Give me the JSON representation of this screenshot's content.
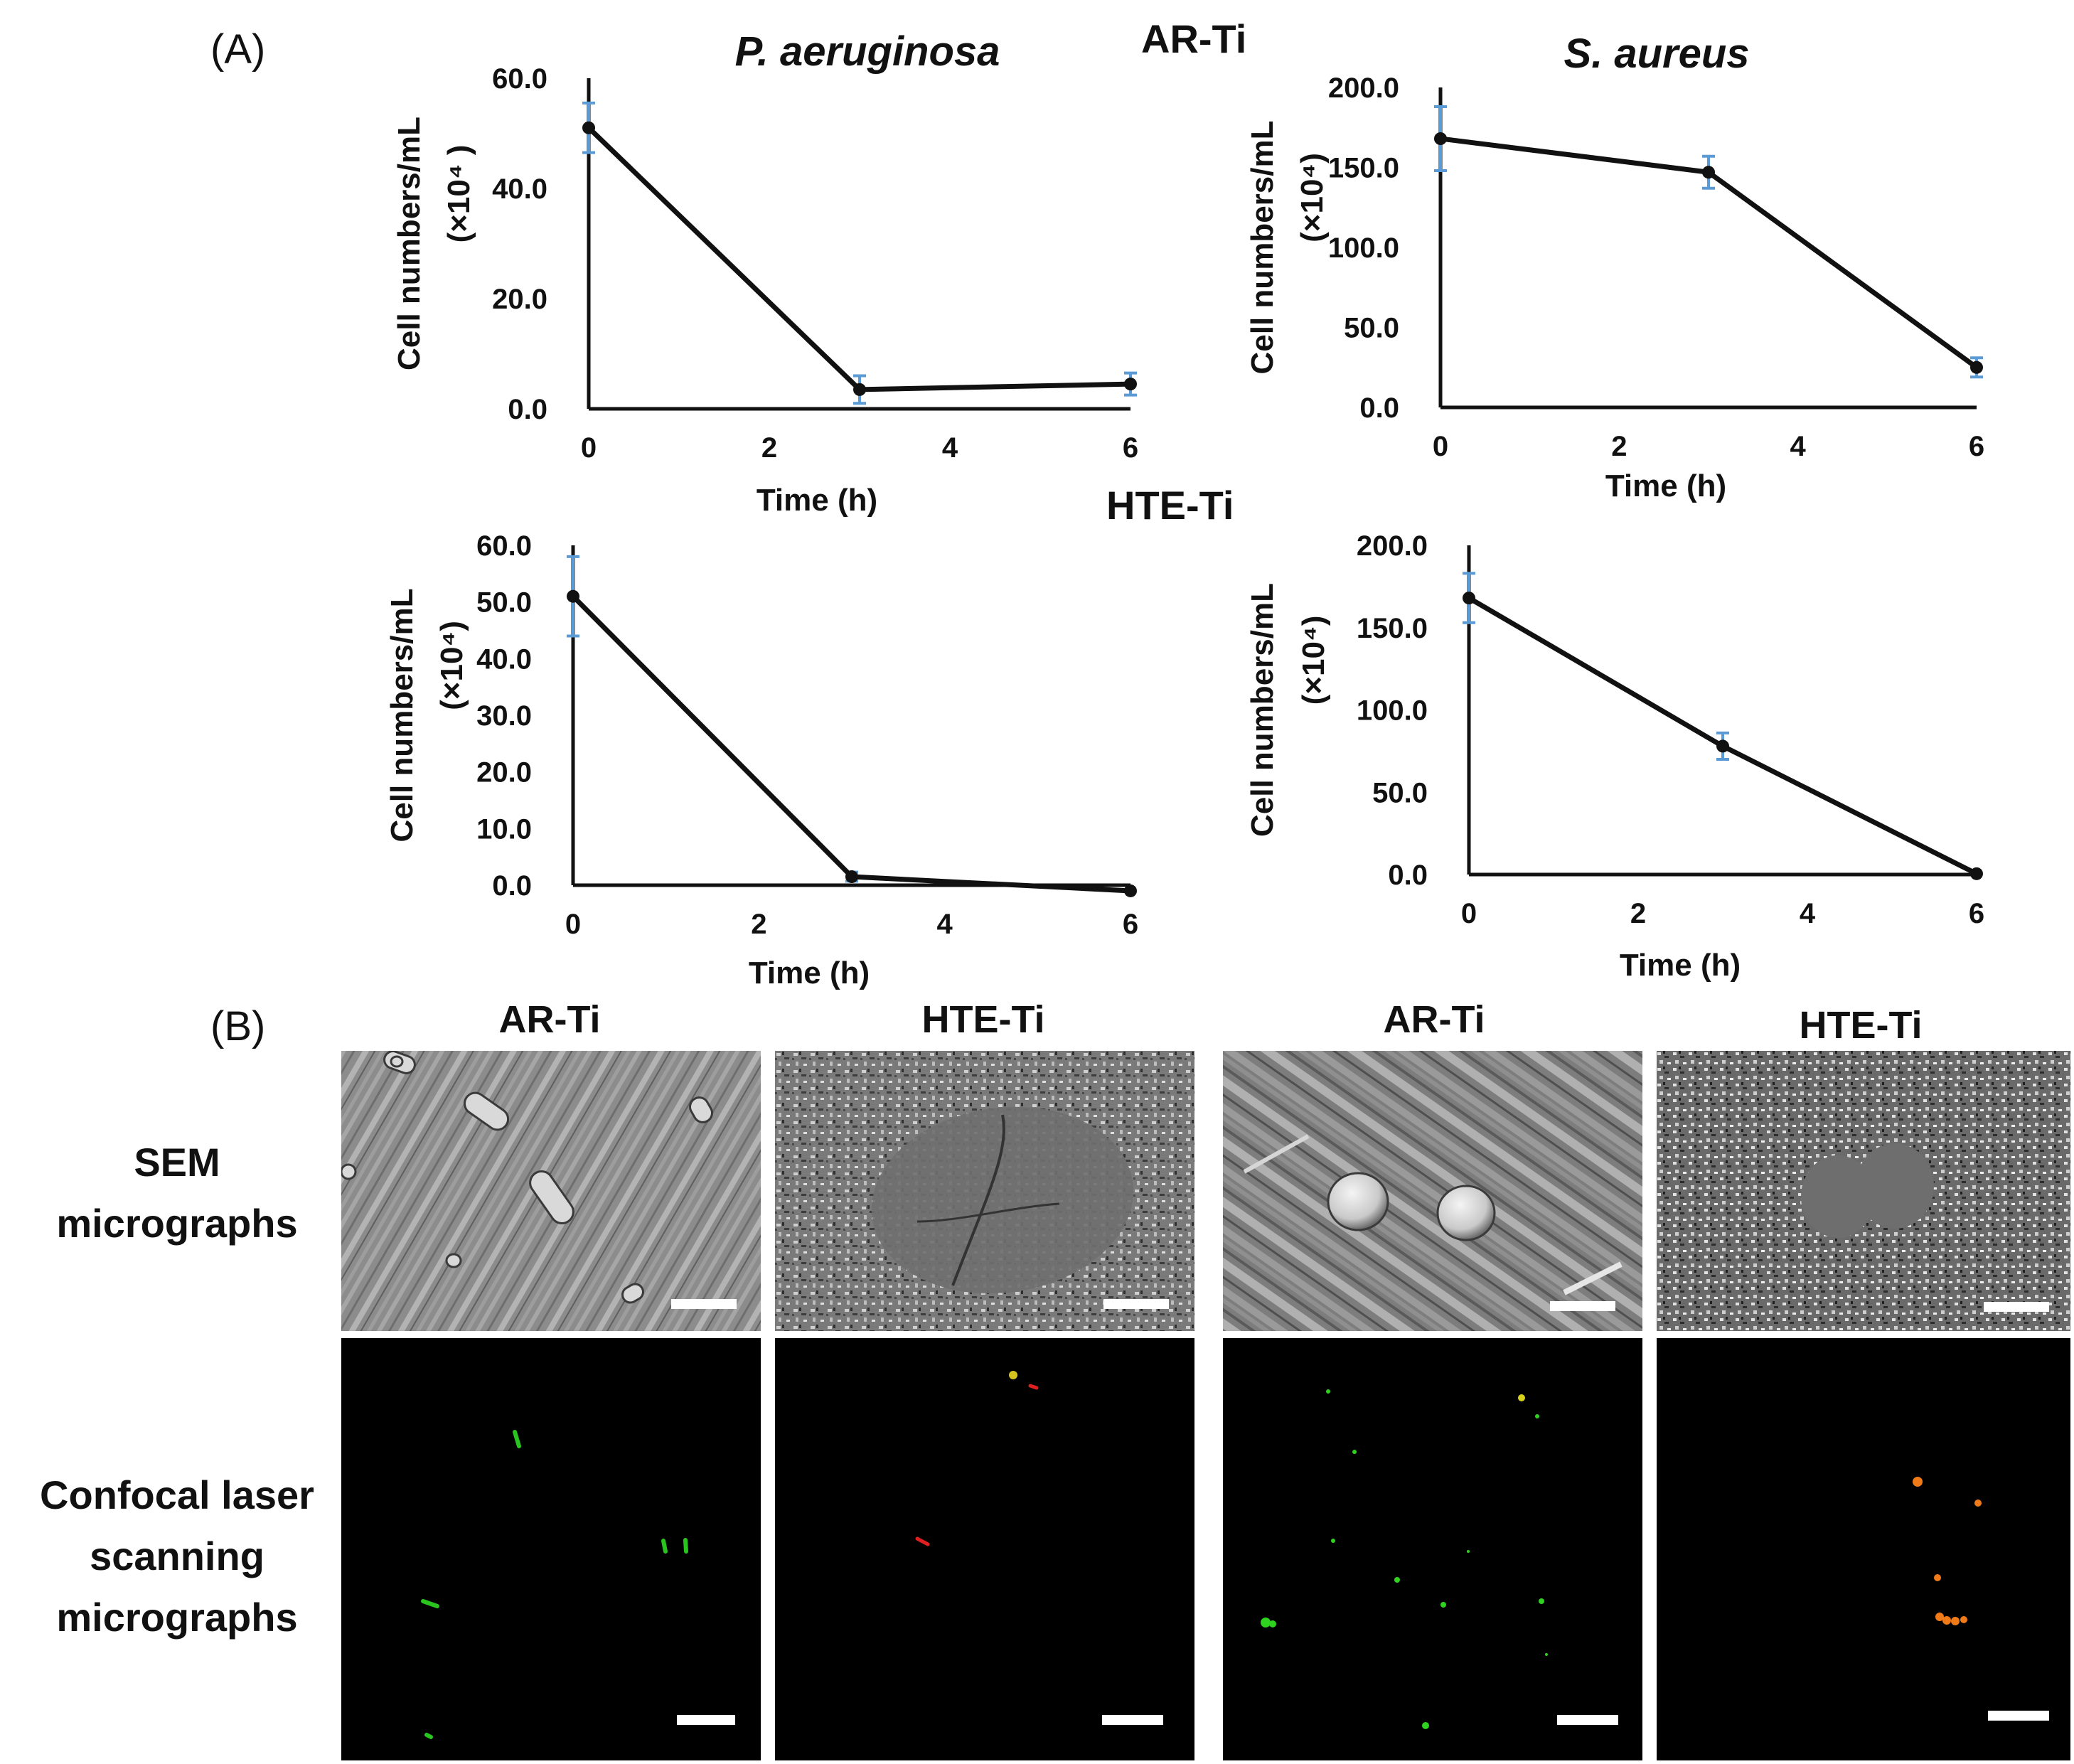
{
  "panel_labels": {
    "a": "(A)",
    "b": "(B)"
  },
  "section_a": {
    "column_titles": {
      "left": "P. aeruginosa",
      "right": "S. aureus"
    },
    "row_titles": {
      "top": "AR-Ti",
      "bottom": "HTE-Ti"
    }
  },
  "chart_data": [
    {
      "type": "line",
      "title": "P. aeruginosa",
      "xlabel": "Time (h)",
      "ylabel": "Cell numbers/mL",
      "yunit": "(×10⁴ )",
      "x": [
        0,
        3,
        6
      ],
      "y": [
        51.0,
        3.5,
        4.5
      ],
      "error": [
        4.5,
        2.5,
        2.0
      ],
      "xlim": [
        0,
        6
      ],
      "ylim": [
        0,
        60
      ],
      "xticks": [
        "0",
        "2",
        "4",
        "6"
      ],
      "yticks": [
        "0.0",
        "20.0",
        "40.0",
        "60.0"
      ],
      "line_color": "#111111",
      "error_color": "#5b9bd5"
    },
    {
      "type": "line",
      "title": "S. aureus",
      "xlabel": "Time (h)",
      "ylabel": "Cell numbers/mL",
      "yunit": "(×10⁴)",
      "x": [
        0,
        3,
        6
      ],
      "y": [
        168,
        147,
        25
      ],
      "error": [
        20,
        10,
        6
      ],
      "xlim": [
        0,
        6
      ],
      "ylim": [
        0,
        200
      ],
      "xticks": [
        "0",
        "2",
        "4",
        "6"
      ],
      "yticks": [
        "0.0",
        "50.0",
        "100.0",
        "150.0",
        "200.0"
      ],
      "line_color": "#111111",
      "error_color": "#5b9bd5"
    },
    {
      "type": "line",
      "title": "",
      "xlabel": "Time (h)",
      "ylabel": "Cell numbers/mL",
      "yunit": "(×10⁴)",
      "x": [
        0,
        3,
        6
      ],
      "y": [
        51.0,
        1.5,
        -1.0
      ],
      "error": [
        7.0,
        0.8,
        0
      ],
      "xlim": [
        0,
        6
      ],
      "ylim": [
        0,
        60
      ],
      "xticks": [
        "0",
        "2",
        "4",
        "6"
      ],
      "yticks": [
        "0.0",
        "10.0",
        "20.0",
        "30.0",
        "40.0",
        "50.0",
        "60.0"
      ],
      "line_color": "#111111",
      "error_color": "#5b9bd5"
    },
    {
      "type": "line",
      "title": "",
      "xlabel": "Time (h)",
      "ylabel": "Cell numbers/mL",
      "yunit": "(×10⁴)",
      "x": [
        0,
        3,
        6
      ],
      "y": [
        168,
        78,
        0.5
      ],
      "error": [
        15,
        8,
        0
      ],
      "xlim": [
        0,
        6
      ],
      "ylim": [
        0,
        200
      ],
      "xticks": [
        "0",
        "2",
        "4",
        "6"
      ],
      "yticks": [
        "0.0",
        "50.0",
        "100.0",
        "150.0",
        "200.0"
      ],
      "line_color": "#111111",
      "error_color": "#5b9bd5"
    }
  ],
  "section_b": {
    "column_titles": [
      "AR-Ti",
      "HTE-Ti",
      "AR-Ti",
      "HTE-Ti"
    ],
    "row_labels": {
      "sem": [
        "SEM",
        "micrographs"
      ],
      "confocal": [
        "Confocal laser",
        "scanning",
        "micrographs"
      ]
    }
  }
}
